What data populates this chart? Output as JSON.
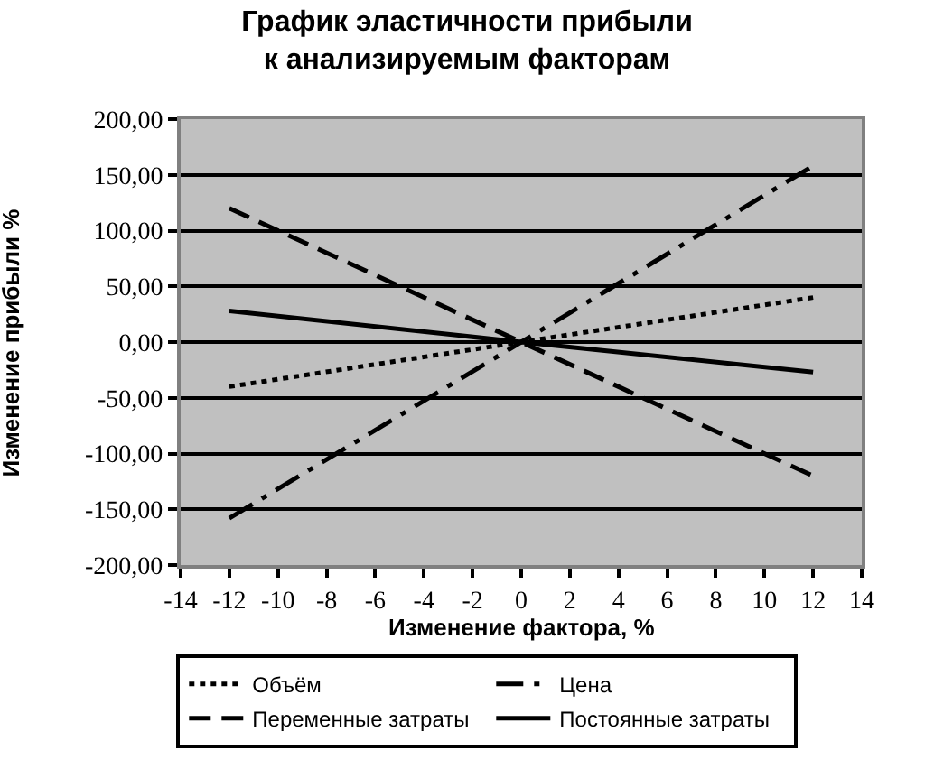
{
  "chart_data": {
    "type": "line",
    "title": "График эластичности прибыли к анализируемым факторам",
    "xlabel": "Изменение фактора, %",
    "ylabel": "Изменение прибыли %",
    "x": [
      -12,
      0,
      12
    ],
    "series": [
      {
        "name": "Объём",
        "color": "#000000",
        "line_style": "dotted",
        "values": [
          -40,
          0,
          40
        ]
      },
      {
        "name": "Цена",
        "color": "#000000",
        "line_style": "dashdot",
        "values": [
          -158,
          0,
          158
        ]
      },
      {
        "name": "Переменные затраты",
        "color": "#000000",
        "line_style": "dashed",
        "values": [
          120,
          0,
          -120
        ]
      },
      {
        "name": "Постоянные затраты",
        "color": "#000000",
        "line_style": "solid",
        "values": [
          28,
          0,
          -27
        ]
      }
    ],
    "xlim": [
      -14,
      14
    ],
    "xticks": [
      -14,
      -12,
      -10,
      -8,
      -6,
      -4,
      -2,
      0,
      2,
      4,
      6,
      8,
      10,
      12,
      14
    ],
    "ylim": [
      -200,
      200
    ],
    "yticks": [
      {
        "value": -200,
        "label": "-200,00"
      },
      {
        "value": -150,
        "label": "-150,00"
      },
      {
        "value": -100,
        "label": "-100,00"
      },
      {
        "value": -50,
        "label": "-50,00"
      },
      {
        "value": 0,
        "label": "0,00"
      },
      {
        "value": 50,
        "label": "50,00"
      },
      {
        "value": 100,
        "label": "100,00"
      },
      {
        "value": 150,
        "label": "150,00"
      },
      {
        "value": 200,
        "label": "200,00"
      }
    ],
    "grid": "y",
    "legend": "bottom",
    "marker": "none"
  }
}
